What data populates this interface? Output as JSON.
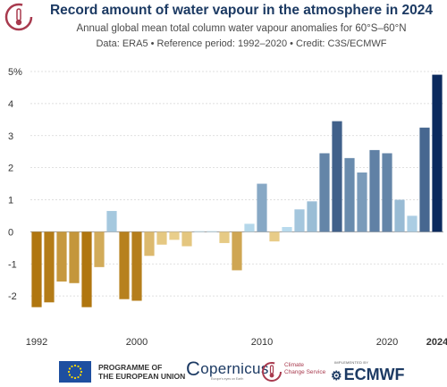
{
  "header": {
    "title": "Record amount of water vapour in the atmosphere in 2024",
    "subtitle": "Annual global mean total column water vapour anomalies for 60°S–60°N",
    "credits": "Data: ERA5 • Reference period: 1992–2020 • Credit: C3S/ECMWF"
  },
  "footer": {
    "eu_line1": "PROGRAMME OF",
    "eu_line2": "THE EUROPEAN UNION",
    "copernicus": "opernicus",
    "copernicus_tag": "Europe's eyes on Earth",
    "ccs_line1": "Climate",
    "ccs_line2": "Change Service",
    "ecmwf_tag": "IMPLEMENTED BY",
    "ecmwf": "ECMWF"
  },
  "chart_data": {
    "type": "bar",
    "title": "Record amount of water vapour in the atmosphere in 2024",
    "subtitle": "Annual global mean total column water vapour anomalies for 60°S–60°N",
    "ylabel": "",
    "xlabel": "",
    "unit": "%",
    "ylim": [
      -3.0,
      5.0
    ],
    "y_ticks": [
      -2,
      -1,
      0,
      1,
      2,
      3,
      4,
      5
    ],
    "y_tick_labels": [
      "-2",
      "-1",
      "0",
      "1",
      "2",
      "3",
      "4",
      "5%"
    ],
    "x_tick_labels": [
      "1992",
      "2000",
      "2010",
      "2020",
      "2024"
    ],
    "grid": "horizontal",
    "color_scale": {
      "negative": "#b0760f",
      "negative_light": "#f0d99a",
      "positive_light": "#bde0f2",
      "positive": "#0b2a5e"
    },
    "categories": [
      "1992",
      "1993",
      "1994",
      "1995",
      "1996",
      "1997",
      "1998",
      "1999",
      "2000",
      "2001",
      "2002",
      "2003",
      "2004",
      "2005",
      "2006",
      "2007",
      "2008",
      "2009",
      "2010",
      "2011",
      "2012",
      "2013",
      "2014",
      "2015",
      "2016",
      "2017",
      "2018",
      "2019",
      "2020",
      "2021",
      "2022",
      "2023",
      "2024"
    ],
    "values": [
      -2.35,
      -2.2,
      -1.55,
      -1.6,
      -2.35,
      -1.1,
      0.65,
      -2.1,
      -2.15,
      -0.75,
      -0.4,
      -0.25,
      -0.45,
      0.02,
      0.02,
      -0.35,
      -1.2,
      0.25,
      1.5,
      -0.3,
      0.15,
      0.7,
      0.95,
      2.45,
      3.45,
      2.3,
      1.85,
      2.55,
      2.45,
      1.0,
      0.5,
      3.25,
      4.9
    ]
  }
}
